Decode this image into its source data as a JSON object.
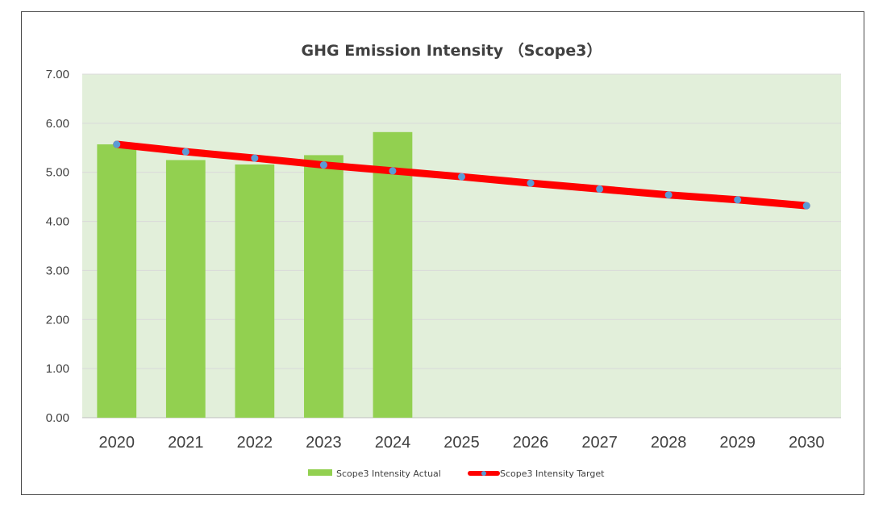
{
  "chart_data": {
    "type": "bar",
    "title": "GHG Emission Intensity （Scope3）",
    "xlabel": "",
    "ylabel": "",
    "categories": [
      "2020",
      "2021",
      "2022",
      "2023",
      "2024",
      "2025",
      "2026",
      "2027",
      "2028",
      "2029",
      "2030"
    ],
    "ylim": [
      0,
      7
    ],
    "yticks": [
      "0.00",
      "1.00",
      "2.00",
      "3.00",
      "4.00",
      "5.00",
      "6.00",
      "7.00"
    ],
    "grid": true,
    "legend_position": "bottom",
    "series": [
      {
        "name": "Scope3 Intensity Actual",
        "type": "bar",
        "color": "#92d050",
        "values": [
          5.57,
          5.25,
          5.16,
          5.35,
          5.82,
          null,
          null,
          null,
          null,
          null,
          null
        ]
      },
      {
        "name": "Scope3 Intensity Target",
        "type": "line",
        "color": "#ff0000",
        "marker_color": "#5b9bd5",
        "values": [
          5.57,
          5.42,
          5.29,
          5.15,
          5.03,
          4.91,
          4.78,
          4.66,
          4.54,
          4.44,
          4.32
        ]
      }
    ],
    "plot_background": "#e2efda",
    "gridline_color": "#d9d9d9"
  }
}
